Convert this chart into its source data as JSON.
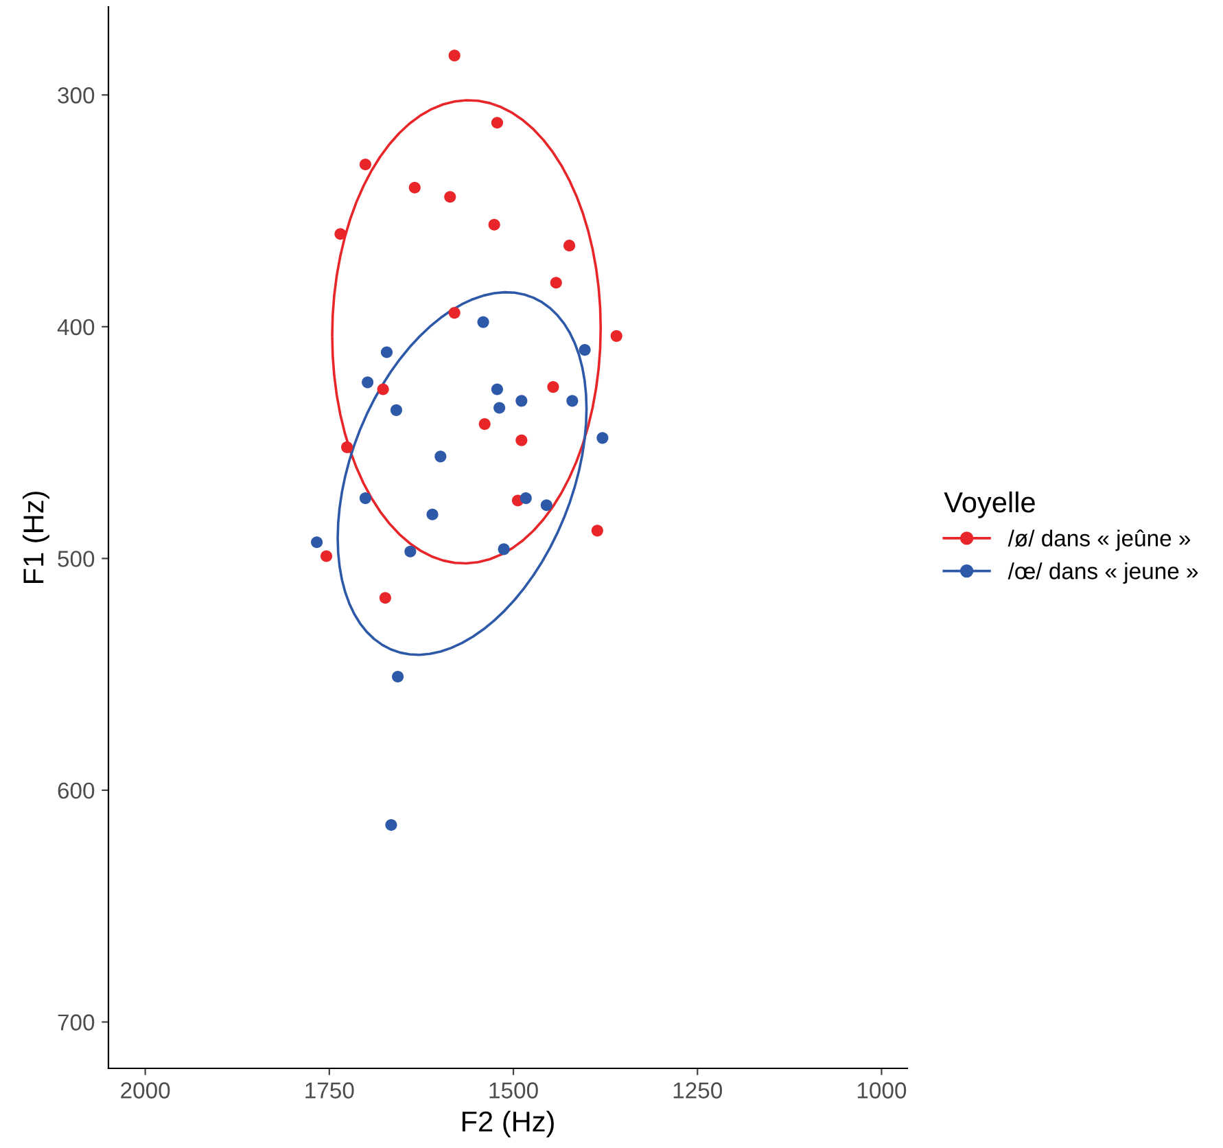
{
  "chart_data": {
    "type": "scatter",
    "xlabel": "F2 (Hz)",
    "ylabel": "F1 (Hz)",
    "legend_title": "Voyelle",
    "xlim": [
      2050,
      965
    ],
    "xticks": [
      2000,
      1750,
      1500,
      1250,
      1000
    ],
    "ylim": [
      720,
      262
    ],
    "yticks": [
      300,
      400,
      500,
      600,
      700
    ],
    "grid": false,
    "legend": "right",
    "marker": "circle",
    "series": [
      {
        "name": "/ø/ dans « jeûne »",
        "color": "#e8262a",
        "x": [
          1580,
          1522,
          1701,
          1634,
          1586,
          1526,
          1735,
          1424,
          1442,
          1580,
          1360,
          1677,
          1446,
          1726,
          1539,
          1489,
          1494,
          1386,
          1754,
          1674
        ],
        "values": [
          283,
          312,
          330,
          340,
          344,
          356,
          360,
          365,
          381,
          394,
          404,
          427,
          426,
          452,
          442,
          449,
          475,
          488,
          499,
          517
        ]
      },
      {
        "name": "/œ/ dans « jeune »",
        "color": "#2d59a8",
        "x": [
          1541,
          1672,
          1403,
          1698,
          1522,
          1519,
          1489,
          1420,
          1659,
          1379,
          1599,
          1701,
          1483,
          1455,
          1610,
          1767,
          1640,
          1513,
          1657,
          1666
        ],
        "values": [
          398,
          411,
          410,
          424,
          427,
          435,
          432,
          432,
          436,
          448,
          456,
          474,
          474,
          477,
          481,
          493,
          497,
          496,
          551,
          615
        ]
      }
    ]
  }
}
